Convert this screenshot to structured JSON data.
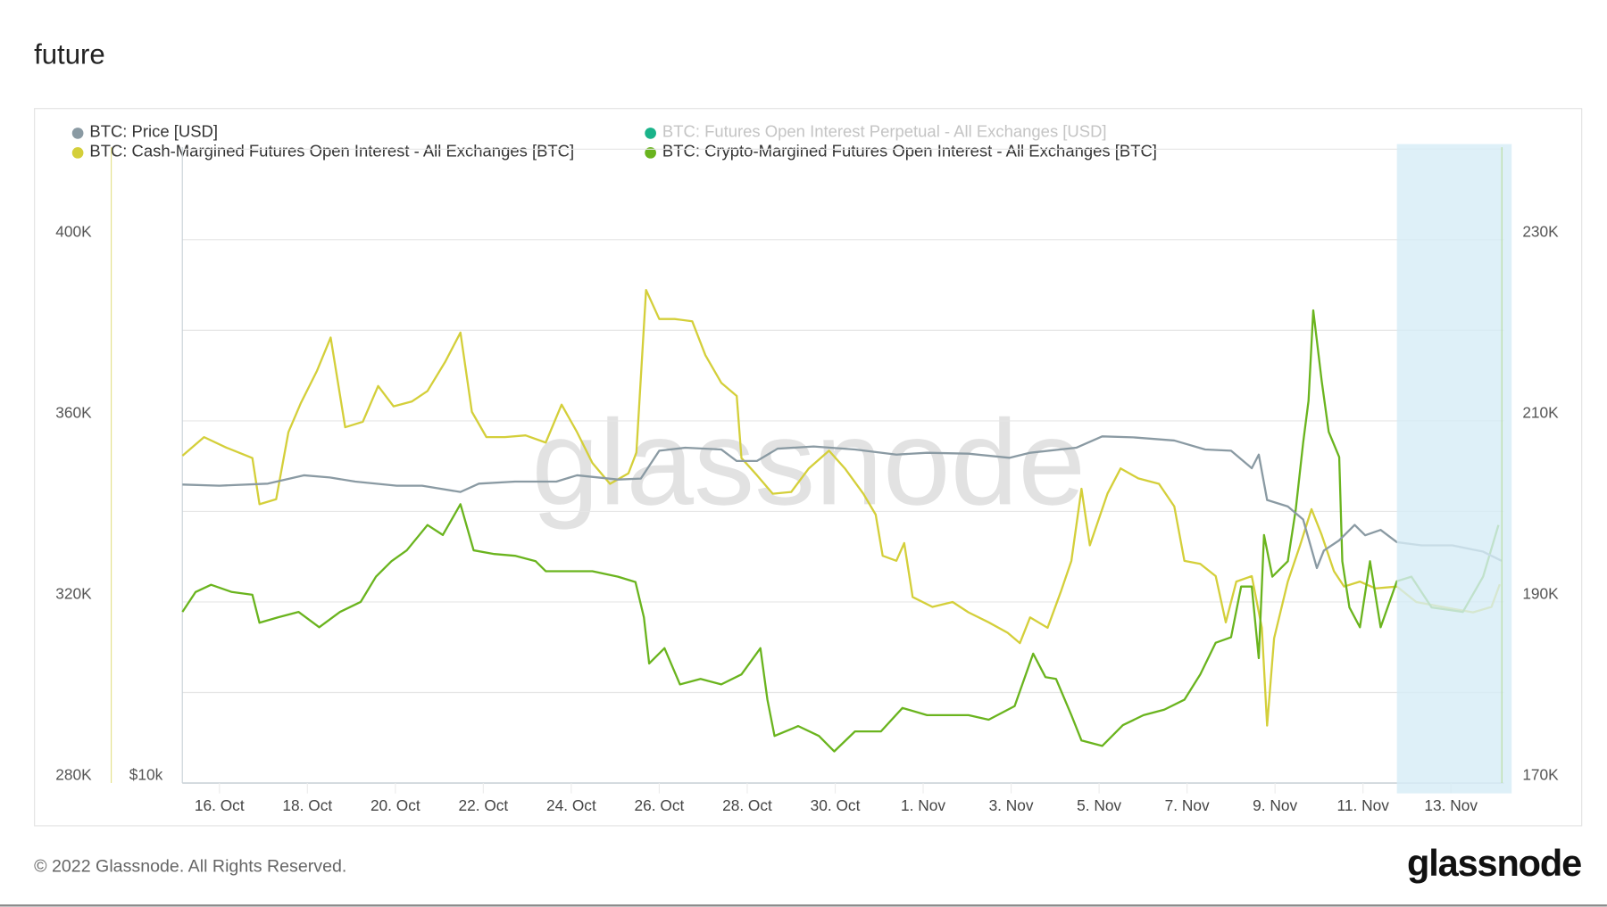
{
  "title": "future",
  "footer": "© 2022 Glassnode. All Rights Reserved.",
  "logo": "glassnode",
  "legend": [
    {
      "label": "BTC: Price [USD]",
      "color": "#8a9aa3",
      "enabled": true
    },
    {
      "label": "BTC: Futures Open Interest Perpetual - All Exchanges [USD]",
      "color": "#1ab38a",
      "enabled": false
    },
    {
      "label": "BTC: Cash-Margined Futures Open Interest - All Exchanges [BTC]",
      "color": "#d4cf3a",
      "enabled": true
    },
    {
      "label": "BTC: Crypto-Margined Futures Open Interest - All Exchanges [BTC]",
      "color": "#6ab41e",
      "enabled": true
    }
  ],
  "chart_data": {
    "type": "line",
    "title": "future",
    "watermark": "glassnode",
    "x_unit": "days since 16 Oct 2022",
    "x_ticks": [
      "16. Oct",
      "18. Oct",
      "20. Oct",
      "22. Oct",
      "24. Oct",
      "26. Oct",
      "28. Oct",
      "30. Oct",
      "1. Nov",
      "3. Nov",
      "5. Nov",
      "7. Nov",
      "9. Nov",
      "11. Nov",
      "13. Nov"
    ],
    "x_tick_days": [
      0,
      2,
      4,
      6,
      8,
      10,
      12,
      14,
      16,
      18,
      20,
      22,
      24,
      26,
      28
    ],
    "left_axis": {
      "ticks": [
        "400K",
        "360K",
        "320K",
        "280K"
      ],
      "tick_values": [
        400,
        360,
        320,
        280
      ],
      "range": [
        280,
        420
      ],
      "unit": "K BTC"
    },
    "price_axis": {
      "ticks": [
        "$10k"
      ]
    },
    "right_axis": {
      "ticks": [
        "230K",
        "210K",
        "190K",
        "170K"
      ],
      "tick_values": [
        230,
        210,
        190,
        170
      ],
      "range": [
        170,
        240
      ],
      "unit": "K BTC"
    },
    "grid": true,
    "legend_position": "top-left",
    "highlight_range_days": [
      26.77,
      29.38
    ],
    "series": [
      {
        "name": "BTC: Price [USD]",
        "axis": "price",
        "unit": "K USD",
        "color": "#8a9aa3",
        "points": [
          [
            -0.84,
            19.16
          ],
          [
            0,
            19.11
          ],
          [
            1.1,
            19.2
          ],
          [
            1.92,
            19.56
          ],
          [
            2.51,
            19.47
          ],
          [
            3.09,
            19.29
          ],
          [
            4.03,
            19.11
          ],
          [
            4.61,
            19.11
          ],
          [
            5.48,
            18.84
          ],
          [
            5.9,
            19.2
          ],
          [
            6.72,
            19.29
          ],
          [
            7.66,
            19.29
          ],
          [
            8.13,
            19.56
          ],
          [
            9.06,
            19.38
          ],
          [
            9.58,
            19.42
          ],
          [
            10,
            20.63
          ],
          [
            10.59,
            20.76
          ],
          [
            11.41,
            20.68
          ],
          [
            11.76,
            20.18
          ],
          [
            12.22,
            20.18
          ],
          [
            12.69,
            20.72
          ],
          [
            13.51,
            20.81
          ],
          [
            14.45,
            20.68
          ],
          [
            15.39,
            20.46
          ],
          [
            16.09,
            20.54
          ],
          [
            17.03,
            20.5
          ],
          [
            17.96,
            20.32
          ],
          [
            18.43,
            20.54
          ],
          [
            19.48,
            20.76
          ],
          [
            20.07,
            21.25
          ],
          [
            20.77,
            21.21
          ],
          [
            21.71,
            21.07
          ],
          [
            22.41,
            20.68
          ],
          [
            23,
            20.63
          ],
          [
            23.47,
            19.87
          ],
          [
            23.63,
            20.46
          ],
          [
            23.82,
            18.49
          ],
          [
            24.29,
            18.21
          ],
          [
            24.64,
            17.64
          ],
          [
            24.95,
            15.54
          ],
          [
            25.11,
            16.3
          ],
          [
            25.46,
            16.74
          ],
          [
            25.81,
            17.41
          ],
          [
            26.05,
            16.96
          ],
          [
            26.4,
            17.19
          ],
          [
            26.77,
            16.66
          ],
          [
            27.33,
            16.52
          ],
          [
            28.03,
            16.52
          ],
          [
            28.73,
            16.25
          ],
          [
            29.15,
            15.85
          ]
        ]
      },
      {
        "name": "BTC: Cash-Margined Futures Open Interest - All Exchanges [BTC]",
        "axis": "left",
        "unit": "K BTC",
        "color": "#d4cf3a",
        "points": [
          [
            -0.84,
            352.3
          ],
          [
            -0.35,
            356.4
          ],
          [
            0.16,
            354.1
          ],
          [
            0.75,
            351.8
          ],
          [
            0.91,
            341.6
          ],
          [
            1.29,
            342.7
          ],
          [
            1.57,
            357.5
          ],
          [
            1.85,
            363.9
          ],
          [
            2.22,
            371.1
          ],
          [
            2.53,
            378.4
          ],
          [
            2.86,
            358.6
          ],
          [
            3.26,
            359.8
          ],
          [
            3.61,
            367.7
          ],
          [
            3.96,
            363.2
          ],
          [
            4.38,
            364.3
          ],
          [
            4.73,
            366.6
          ],
          [
            5.13,
            373
          ],
          [
            5.48,
            379.5
          ],
          [
            5.74,
            362
          ],
          [
            6.07,
            356.4
          ],
          [
            6.49,
            356.4
          ],
          [
            6.96,
            356.8
          ],
          [
            7.42,
            355.2
          ],
          [
            7.78,
            363.6
          ],
          [
            8.13,
            357.5
          ],
          [
            8.48,
            350.7
          ],
          [
            8.88,
            346.1
          ],
          [
            9.3,
            348.4
          ],
          [
            9.48,
            353
          ],
          [
            9.7,
            388.9
          ],
          [
            10,
            382.5
          ],
          [
            10.35,
            382.5
          ],
          [
            10.75,
            382
          ],
          [
            11.05,
            374.5
          ],
          [
            11.41,
            368.4
          ],
          [
            11.76,
            365.5
          ],
          [
            11.87,
            351.8
          ],
          [
            12.22,
            348
          ],
          [
            12.58,
            343.9
          ],
          [
            13,
            344.3
          ],
          [
            13.4,
            349.5
          ],
          [
            13.86,
            353.4
          ],
          [
            14.22,
            349.5
          ],
          [
            14.64,
            343.9
          ],
          [
            14.92,
            339.3
          ],
          [
            15.08,
            330.2
          ],
          [
            15.39,
            329.1
          ],
          [
            15.57,
            333
          ],
          [
            15.76,
            321.1
          ],
          [
            16.21,
            318.9
          ],
          [
            16.67,
            320
          ],
          [
            17.03,
            317.7
          ],
          [
            17.49,
            315.5
          ],
          [
            17.92,
            313.2
          ],
          [
            18.2,
            310.9
          ],
          [
            18.43,
            316.6
          ],
          [
            18.83,
            314.3
          ],
          [
            19.13,
            322.3
          ],
          [
            19.37,
            329.1
          ],
          [
            19.6,
            345
          ],
          [
            19.79,
            332.5
          ],
          [
            20.19,
            343.9
          ],
          [
            20.49,
            349.5
          ],
          [
            20.89,
            347.3
          ],
          [
            21.36,
            346.1
          ],
          [
            21.71,
            341.1
          ],
          [
            21.94,
            329.1
          ],
          [
            22.3,
            328.4
          ],
          [
            22.65,
            325.7
          ],
          [
            22.88,
            315.5
          ],
          [
            23.12,
            324.5
          ],
          [
            23.47,
            325.7
          ],
          [
            23.7,
            314.3
          ],
          [
            23.82,
            292.7
          ],
          [
            23.98,
            312
          ],
          [
            24.29,
            324.5
          ],
          [
            24.57,
            332.5
          ],
          [
            24.83,
            340.5
          ],
          [
            25.06,
            334.8
          ],
          [
            25.34,
            326.8
          ],
          [
            25.57,
            323.4
          ],
          [
            25.93,
            324.5
          ],
          [
            26.28,
            323
          ],
          [
            26.77,
            323.4
          ],
          [
            27.21,
            320
          ],
          [
            27.8,
            318.9
          ],
          [
            28.5,
            317.7
          ],
          [
            28.92,
            318.9
          ],
          [
            29.11,
            323.9
          ]
        ]
      },
      {
        "name": "BTC: Crypto-Margined Futures Open Interest - All Exchanges [BTC]",
        "axis": "right",
        "unit": "K BTC",
        "color": "#6ab41e",
        "points": [
          [
            -0.84,
            188.9
          ],
          [
            -0.54,
            191.1
          ],
          [
            -0.19,
            191.9
          ],
          [
            0.28,
            191.1
          ],
          [
            0.75,
            190.8
          ],
          [
            0.91,
            187.7
          ],
          [
            1.33,
            188.3
          ],
          [
            1.8,
            188.9
          ],
          [
            2.27,
            187.2
          ],
          [
            2.74,
            188.9
          ],
          [
            3.21,
            190
          ],
          [
            3.56,
            192.8
          ],
          [
            3.91,
            194.5
          ],
          [
            4.26,
            195.7
          ],
          [
            4.73,
            198.5
          ],
          [
            5.08,
            197.4
          ],
          [
            5.48,
            200.8
          ],
          [
            5.78,
            195.7
          ],
          [
            6.25,
            195.3
          ],
          [
            6.72,
            195.1
          ],
          [
            7.19,
            194.5
          ],
          [
            7.42,
            193.4
          ],
          [
            7.89,
            193.4
          ],
          [
            8.48,
            193.4
          ],
          [
            9.06,
            192.8
          ],
          [
            9.46,
            192.2
          ],
          [
            9.65,
            188.3
          ],
          [
            9.77,
            183.2
          ],
          [
            10.12,
            184.9
          ],
          [
            10.47,
            180.9
          ],
          [
            10.94,
            181.5
          ],
          [
            11.41,
            180.9
          ],
          [
            11.87,
            182
          ],
          [
            12.3,
            184.9
          ],
          [
            12.46,
            179.2
          ],
          [
            12.62,
            175.2
          ],
          [
            13.16,
            176.3
          ],
          [
            13.63,
            175.2
          ],
          [
            13.98,
            173.5
          ],
          [
            14.45,
            175.7
          ],
          [
            15.04,
            175.7
          ],
          [
            15.53,
            178.3
          ],
          [
            16.09,
            177.5
          ],
          [
            16.56,
            177.5
          ],
          [
            17.03,
            177.5
          ],
          [
            17.49,
            177
          ],
          [
            18.08,
            178.5
          ],
          [
            18.5,
            184.3
          ],
          [
            18.78,
            181.7
          ],
          [
            19.02,
            181.5
          ],
          [
            19.37,
            177.5
          ],
          [
            19.6,
            174.7
          ],
          [
            20.07,
            174.1
          ],
          [
            20.54,
            176.4
          ],
          [
            21.01,
            177.5
          ],
          [
            21.48,
            178.1
          ],
          [
            21.94,
            179.2
          ],
          [
            22.3,
            182
          ],
          [
            22.65,
            185.5
          ],
          [
            23,
            186.1
          ],
          [
            23.23,
            191.7
          ],
          [
            23.47,
            191.7
          ],
          [
            23.63,
            183.8
          ],
          [
            23.75,
            197.4
          ],
          [
            23.94,
            192.8
          ],
          [
            24.29,
            194.5
          ],
          [
            24.47,
            200.2
          ],
          [
            24.64,
            207.6
          ],
          [
            24.76,
            212.2
          ],
          [
            24.87,
            222.2
          ],
          [
            25.06,
            214.4
          ],
          [
            25.22,
            208.8
          ],
          [
            25.46,
            206
          ],
          [
            25.53,
            194.5
          ],
          [
            25.69,
            189.4
          ],
          [
            25.93,
            187.2
          ],
          [
            26.16,
            194.5
          ],
          [
            26.4,
            187.2
          ],
          [
            26.77,
            192.3
          ],
          [
            27.1,
            192.8
          ],
          [
            27.56,
            189.4
          ],
          [
            28.27,
            188.9
          ],
          [
            28.73,
            192.8
          ],
          [
            29.08,
            198.5
          ]
        ]
      }
    ]
  }
}
